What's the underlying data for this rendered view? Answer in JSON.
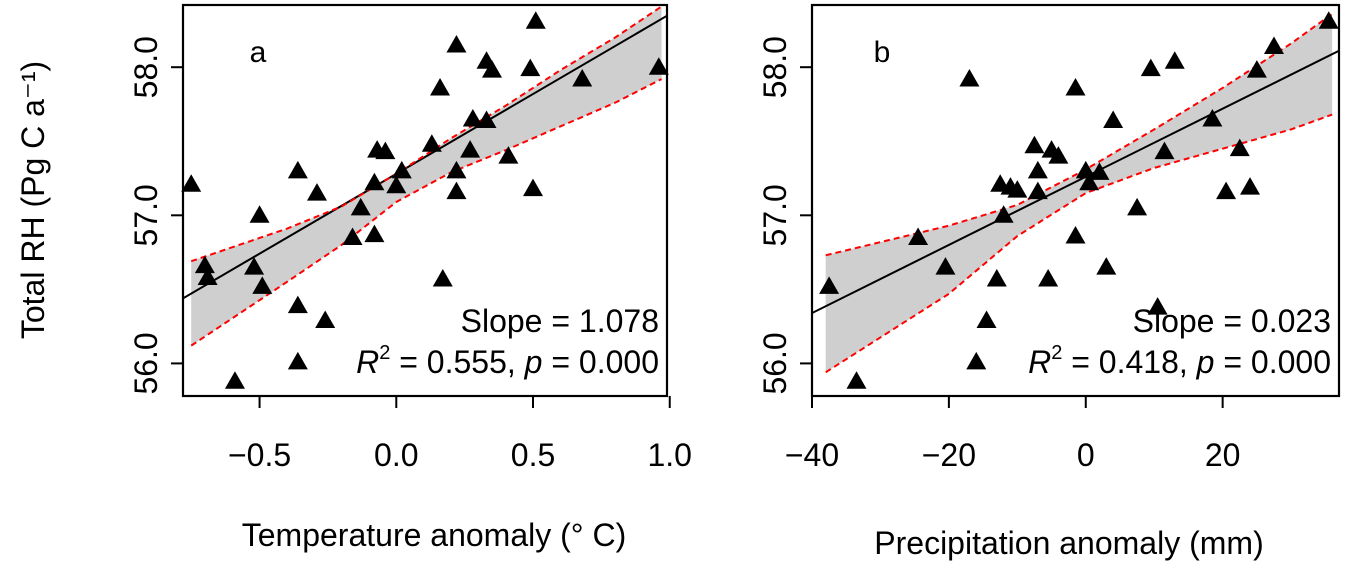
{
  "chart_data": [
    {
      "type": "scatter",
      "panel_label": "a",
      "xlabel": "Temperature anomaly (° C)",
      "ylabel": "Total RH (Pg C a⁻¹)",
      "xlim": [
        -0.78,
        0.99
      ],
      "ylim": [
        55.78,
        58.42
      ],
      "xticks": [
        -0.5,
        0.0,
        0.5,
        1.0
      ],
      "xtick_labels": [
        "−0.5",
        "0.0",
        "0.5",
        "1.0"
      ],
      "yticks": [
        56.0,
        57.0,
        58.0
      ],
      "ytick_labels": [
        "56.0",
        "57.0",
        "58.0"
      ],
      "fit": {
        "slope": 1.078,
        "intercept": 57.28,
        "x_range": [
          -0.75,
          0.97
        ]
      },
      "ci_upper": [
        [
          -0.75,
          56.69
        ],
        [
          -0.4,
          56.91
        ],
        [
          -0.2,
          57.06
        ],
        [
          0.0,
          57.28
        ],
        [
          0.2,
          57.52
        ],
        [
          0.4,
          57.74
        ],
        [
          0.6,
          57.98
        ],
        [
          0.8,
          58.2
        ],
        [
          0.97,
          58.41
        ]
      ],
      "ci_lower": [
        [
          -0.75,
          56.12
        ],
        [
          -0.4,
          56.55
        ],
        [
          -0.2,
          56.8
        ],
        [
          0.0,
          57.09
        ],
        [
          0.2,
          57.29
        ],
        [
          0.4,
          57.44
        ],
        [
          0.6,
          57.6
        ],
        [
          0.8,
          57.76
        ],
        [
          0.97,
          57.92
        ]
      ],
      "points": [
        [
          -0.75,
          57.21
        ],
        [
          -0.7,
          56.66
        ],
        [
          -0.69,
          56.58
        ],
        [
          -0.59,
          55.88
        ],
        [
          -0.52,
          56.65
        ],
        [
          -0.5,
          57.0
        ],
        [
          -0.49,
          56.52
        ],
        [
          -0.36,
          57.3
        ],
        [
          -0.36,
          56.39
        ],
        [
          -0.36,
          56.01
        ],
        [
          -0.29,
          57.15
        ],
        [
          -0.26,
          56.29
        ],
        [
          -0.16,
          56.85
        ],
        [
          -0.13,
          57.05
        ],
        [
          -0.08,
          57.22
        ],
        [
          -0.08,
          56.87
        ],
        [
          -0.07,
          57.44
        ],
        [
          -0.04,
          57.43
        ],
        [
          0.0,
          57.2
        ],
        [
          0.02,
          57.3
        ],
        [
          0.13,
          57.48
        ],
        [
          0.16,
          57.86
        ],
        [
          0.17,
          56.57
        ],
        [
          0.22,
          58.15
        ],
        [
          0.22,
          57.3
        ],
        [
          0.22,
          57.16
        ],
        [
          0.27,
          57.44
        ],
        [
          0.28,
          57.65
        ],
        [
          0.33,
          58.04
        ],
        [
          0.33,
          57.64
        ],
        [
          0.35,
          57.98
        ],
        [
          0.41,
          57.4
        ],
        [
          0.49,
          57.99
        ],
        [
          0.5,
          57.18
        ],
        [
          0.51,
          58.31
        ],
        [
          0.68,
          57.92
        ],
        [
          0.96,
          58.0
        ]
      ],
      "annotations": {
        "slope": "Slope = 1.078",
        "r2_value": " = 0.555, ",
        "p_value": " = 0.000"
      }
    },
    {
      "type": "scatter",
      "panel_label": "b",
      "xlabel": "Precipitation anomaly (mm)",
      "xlim": [
        -40,
        37
      ],
      "ylim": [
        55.78,
        58.42
      ],
      "xticks": [
        -40,
        -20,
        0,
        20
      ],
      "xtick_labels": [
        "−40",
        "−20",
        "0",
        "20"
      ],
      "yticks": [
        56.0,
        57.0,
        58.0
      ],
      "ytick_labels": [
        "56.0",
        "57.0",
        "58.0"
      ],
      "fit": {
        "slope": 0.023,
        "intercept": 57.26,
        "x_range": [
          -40,
          37
        ]
      },
      "ci_upper": [
        [
          -38,
          56.73
        ],
        [
          -20,
          56.93
        ],
        [
          -10,
          57.07
        ],
        [
          0,
          57.31
        ],
        [
          10,
          57.58
        ],
        [
          20,
          57.86
        ],
        [
          30,
          58.16
        ],
        [
          36,
          58.36
        ]
      ],
      "ci_lower": [
        [
          -38,
          55.94
        ],
        [
          -20,
          56.47
        ],
        [
          -10,
          56.86
        ],
        [
          0,
          57.15
        ],
        [
          10,
          57.32
        ],
        [
          20,
          57.45
        ],
        [
          30,
          57.58
        ],
        [
          36,
          57.68
        ]
      ],
      "points": [
        [
          -37.5,
          56.52
        ],
        [
          -33.5,
          55.88
        ],
        [
          -24.5,
          56.85
        ],
        [
          -20.5,
          56.65
        ],
        [
          -17,
          57.92
        ],
        [
          -16,
          56.01
        ],
        [
          -14.5,
          56.29
        ],
        [
          -13,
          56.57
        ],
        [
          -12.5,
          57.21
        ],
        [
          -12,
          57.0
        ],
        [
          -11,
          57.19
        ],
        [
          -10,
          57.17
        ],
        [
          -7.5,
          57.47
        ],
        [
          -7,
          57.3
        ],
        [
          -7,
          57.16
        ],
        [
          -5.5,
          56.57
        ],
        [
          -5,
          57.44
        ],
        [
          -4,
          57.4
        ],
        [
          -1.5,
          57.86
        ],
        [
          -1.5,
          56.86
        ],
        [
          0,
          57.3
        ],
        [
          0.5,
          57.22
        ],
        [
          2,
          57.29
        ],
        [
          3,
          56.65
        ],
        [
          4,
          57.64
        ],
        [
          7.5,
          57.05
        ],
        [
          9.5,
          57.99
        ],
        [
          10.5,
          56.38
        ],
        [
          11.5,
          57.43
        ],
        [
          13,
          58.04
        ],
        [
          18.5,
          57.65
        ],
        [
          20.5,
          57.16
        ],
        [
          22.5,
          57.45
        ],
        [
          24,
          57.19
        ],
        [
          25,
          57.98
        ],
        [
          27.5,
          58.14
        ],
        [
          35.5,
          58.31
        ]
      ],
      "annotations": {
        "slope": "Slope = 0.023",
        "r2_value": " = 0.418, ",
        "p_value": " = 0.000"
      }
    }
  ]
}
